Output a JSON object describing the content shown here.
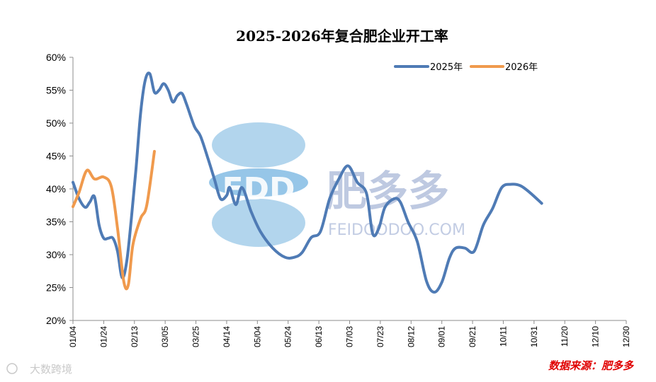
{
  "chart_data": {
    "type": "line",
    "title": "2025-2026年复合肥企业开工率",
    "x_tick_labels": [
      "01/04",
      "01/24",
      "02/13",
      "03/05",
      "03/25",
      "04/14",
      "05/04",
      "05/24",
      "06/13",
      "07/03",
      "07/23",
      "08/12",
      "09/01",
      "09/21",
      "10/11",
      "10/31",
      "11/20",
      "12/10",
      "12/30"
    ],
    "y_tick_labels": [
      "20%",
      "25%",
      "30%",
      "35%",
      "40%",
      "45%",
      "50%",
      "55%",
      "60%"
    ],
    "ylim": [
      20,
      60
    ],
    "grid": false,
    "legend_position": "top-right",
    "series": [
      {
        "name": "2025年",
        "color": "#4f7bb5",
        "points": [
          [
            "01/04",
            41.0
          ],
          [
            "01/08",
            38.5
          ],
          [
            "01/12",
            37.2
          ],
          [
            "01/15",
            38.0
          ],
          [
            "01/18",
            38.8
          ],
          [
            "01/21",
            34.5
          ],
          [
            "01/24",
            32.5
          ],
          [
            "01/27",
            32.5
          ],
          [
            "01/30",
            32.5
          ],
          [
            "02/02",
            30.5
          ],
          [
            "02/05",
            26.5
          ],
          [
            "02/08",
            29.0
          ],
          [
            "02/11",
            35.5
          ],
          [
            "02/14",
            43.0
          ],
          [
            "02/17",
            51.5
          ],
          [
            "02/20",
            56.5
          ],
          [
            "02/23",
            57.5
          ],
          [
            "02/26",
            54.7
          ],
          [
            "03/01",
            55.0
          ],
          [
            "03/04",
            56.0
          ],
          [
            "03/07",
            55.0
          ],
          [
            "03/10",
            53.2
          ],
          [
            "03/13",
            54.2
          ],
          [
            "03/16",
            54.5
          ],
          [
            "03/19",
            52.8
          ],
          [
            "03/24",
            49.5
          ],
          [
            "03/28",
            48.0
          ],
          [
            "04/02",
            44.5
          ],
          [
            "04/06",
            41.5
          ],
          [
            "04/10",
            38.5
          ],
          [
            "04/14",
            39.0
          ],
          [
            "04/16",
            40.2
          ],
          [
            "04/20",
            37.6
          ],
          [
            "04/24",
            40.2
          ],
          [
            "04/30",
            36.5
          ],
          [
            "05/06",
            33.5
          ],
          [
            "05/14",
            31.0
          ],
          [
            "05/22",
            29.6
          ],
          [
            "05/28",
            29.6
          ],
          [
            "06/02",
            30.3
          ],
          [
            "06/08",
            32.6
          ],
          [
            "06/14",
            33.5
          ],
          [
            "06/20",
            38.5
          ],
          [
            "06/26",
            41.5
          ],
          [
            "07/02",
            43.5
          ],
          [
            "07/08",
            41.0
          ],
          [
            "07/14",
            39.3
          ],
          [
            "07/18",
            33.2
          ],
          [
            "07/22",
            34.0
          ],
          [
            "07/26",
            37.2
          ],
          [
            "08/01",
            38.5
          ],
          [
            "08/05",
            38.0
          ],
          [
            "08/10",
            35.0
          ],
          [
            "08/16",
            32.0
          ],
          [
            "08/22",
            26.0
          ],
          [
            "08/27",
            24.3
          ],
          [
            "09/01",
            25.8
          ],
          [
            "09/06",
            29.5
          ],
          [
            "09/10",
            31.0
          ],
          [
            "09/16",
            31.0
          ],
          [
            "09/22",
            30.5
          ],
          [
            "09/28",
            34.5
          ],
          [
            "10/04",
            37.0
          ],
          [
            "10/10",
            40.2
          ],
          [
            "10/16",
            40.7
          ],
          [
            "10/22",
            40.5
          ],
          [
            "10/28",
            39.5
          ],
          [
            "11/05",
            37.8
          ]
        ]
      },
      {
        "name": "2026年",
        "color": "#f09a4d",
        "points": [
          [
            "01/04",
            37.3
          ],
          [
            "01/08",
            39.5
          ],
          [
            "01/13",
            42.8
          ],
          [
            "01/18",
            41.5
          ],
          [
            "01/24",
            41.8
          ],
          [
            "01/29",
            40.3
          ],
          [
            "02/02",
            34.0
          ],
          [
            "02/06",
            26.0
          ],
          [
            "02/09",
            25.4
          ],
          [
            "02/12",
            31.5
          ],
          [
            "02/17",
            35.5
          ],
          [
            "02/21",
            37.5
          ],
          [
            "02/26",
            45.7
          ]
        ]
      }
    ]
  },
  "watermark": {
    "logo_text": "FDD",
    "brand": "肥多多",
    "url": "FEIDOODOO.COM",
    "corner": "大数跨境"
  },
  "source": "数据来源：肥多多"
}
